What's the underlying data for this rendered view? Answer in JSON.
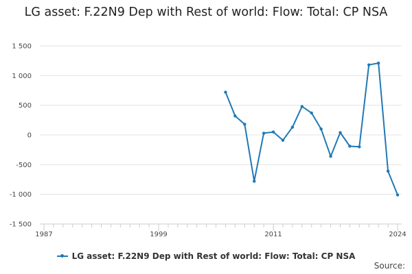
{
  "chart_data": {
    "type": "line",
    "title": "LG asset: F.22N9 Dep with Rest of world: Flow: Total: CP NSA",
    "xlabel": "",
    "ylabel": "",
    "x_tick_labels": [
      "1987",
      "1999",
      "2011",
      "2024"
    ],
    "y_tick_labels": [
      "1 500",
      "1 000",
      "500",
      "0",
      "-500",
      "-1 000",
      "-1 500"
    ],
    "y_ticks": [
      1500,
      1000,
      500,
      0,
      -500,
      -1000,
      -1500
    ],
    "ylim": [
      -1500,
      1500
    ],
    "xlim": [
      1987,
      2024
    ],
    "grid": true,
    "legend_position": "bottom",
    "series": [
      {
        "name": "LG asset: F.22N9 Dep with Rest of world: Flow: Total: CP NSA",
        "color": "#1f78b4",
        "x": [
          2006,
          2007,
          2008,
          2009,
          2010,
          2011,
          2012,
          2013,
          2014,
          2015,
          2016,
          2017,
          2018,
          2019,
          2020,
          2021,
          2022,
          2023,
          2024
        ],
        "y": [
          720,
          320,
          180,
          -780,
          30,
          50,
          -90,
          130,
          480,
          370,
          100,
          -360,
          40,
          -190,
          -200,
          1180,
          1210,
          -610,
          -1010
        ]
      }
    ]
  },
  "source_label": "Source:"
}
